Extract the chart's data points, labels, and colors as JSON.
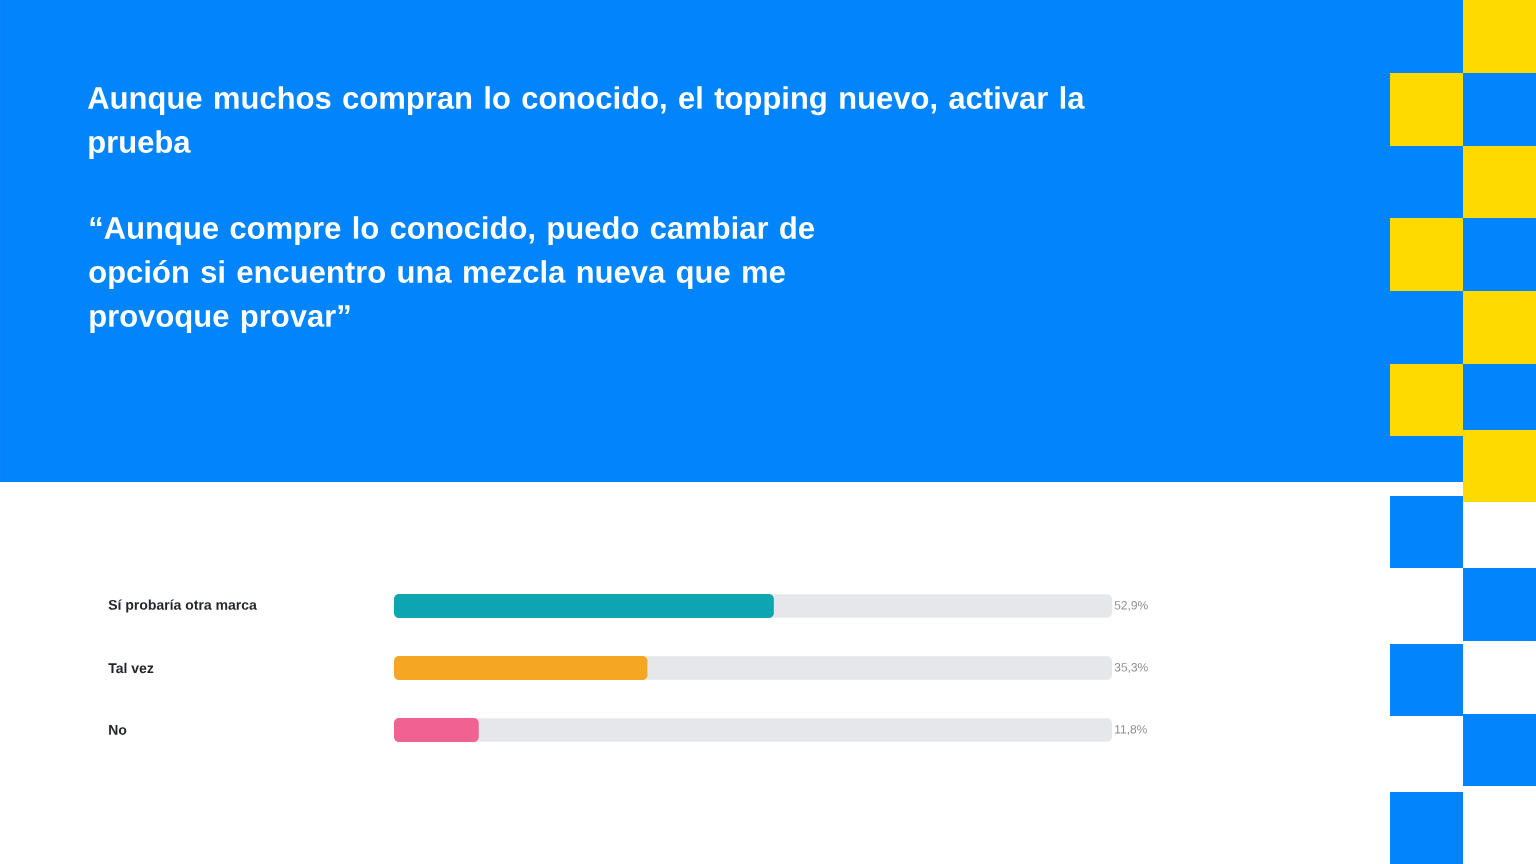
{
  "chart_data": {
    "type": "bar",
    "orientation": "horizontal",
    "title": "Aunque muchos compran lo conocido, el topping nuevo, activar la prueba",
    "subtitle": "“Aunque compre lo conocido, puedo cambiar de opción si encuentro una mezcla nueva  que me provoque provar”",
    "categories": [
      "Sí probaría otra marca",
      "Tal vez",
      "No"
    ],
    "values": [
      52.9,
      35.3,
      11.8
    ],
    "colors": [
      "#0ea5b0",
      "#f5a623",
      "#f06292"
    ],
    "value_labels": [
      "52,9%",
      "35,3%",
      "11,8%"
    ],
    "xlim": [
      0,
      100
    ],
    "tick_labels": "y"
  }
}
